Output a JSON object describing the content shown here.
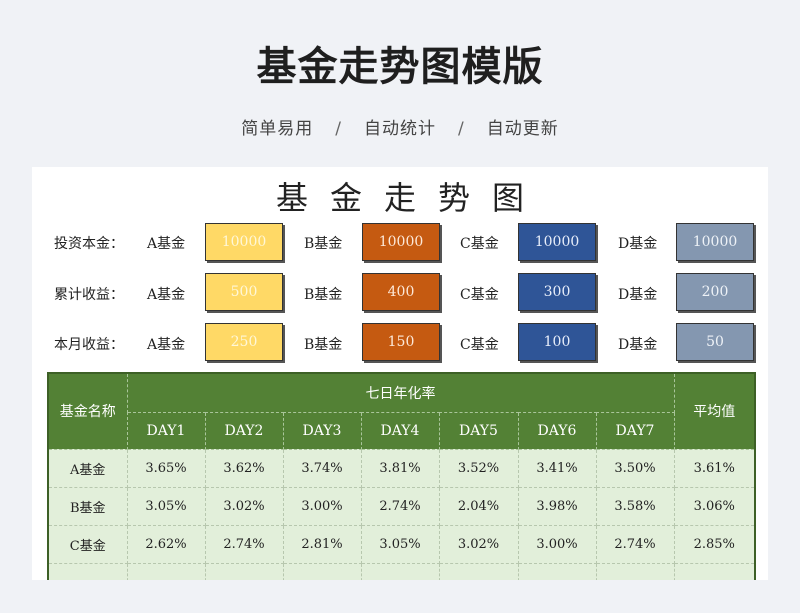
{
  "header": {
    "title": "基金走势图模版",
    "subtitle": [
      "简单易用",
      "自动统计",
      "自动更新"
    ],
    "separator": "/"
  },
  "sheet": {
    "title": "基金走势图",
    "rows": [
      {
        "label": "投资本金：",
        "funds": [
          {
            "name": "A基金",
            "value": "10000"
          },
          {
            "name": "B基金",
            "value": "10000"
          },
          {
            "name": "C基金",
            "value": "10000"
          },
          {
            "name": "D基金",
            "value": "10000"
          }
        ]
      },
      {
        "label": "累计收益：",
        "funds": [
          {
            "name": "A基金",
            "value": "500"
          },
          {
            "name": "B基金",
            "value": "400"
          },
          {
            "name": "C基金",
            "value": "300"
          },
          {
            "name": "D基金",
            "value": "200"
          }
        ]
      },
      {
        "label": "本月收益：",
        "funds": [
          {
            "name": "A基金",
            "value": "250"
          },
          {
            "name": "B基金",
            "value": "150"
          },
          {
            "name": "C基金",
            "value": "100"
          },
          {
            "name": "D基金",
            "value": "50"
          }
        ]
      }
    ],
    "box_colors": {
      "A": "#ffd966",
      "B": "#c55a11",
      "C": "#2f5597",
      "D": "#8497b0"
    }
  },
  "table": {
    "name_header": "基金名称",
    "group_header": "七日年化率",
    "avg_header": "平均值",
    "day_headers": [
      "DAY1",
      "DAY2",
      "DAY3",
      "DAY4",
      "DAY5",
      "DAY6",
      "DAY7"
    ],
    "rows": [
      {
        "name": "A基金",
        "values": [
          "3.65%",
          "3.62%",
          "3.74%",
          "3.81%",
          "3.52%",
          "3.41%",
          "3.50%"
        ],
        "avg": "3.61%"
      },
      {
        "name": "B基金",
        "values": [
          "3.05%",
          "3.02%",
          "3.00%",
          "2.74%",
          "2.04%",
          "3.98%",
          "3.58%"
        ],
        "avg": "3.06%"
      },
      {
        "name": "C基金",
        "values": [
          "2.62%",
          "2.74%",
          "2.81%",
          "3.05%",
          "3.02%",
          "3.00%",
          "2.74%"
        ],
        "avg": "2.85%"
      }
    ],
    "header_color": "#538135",
    "body_color": "#e2efda"
  }
}
